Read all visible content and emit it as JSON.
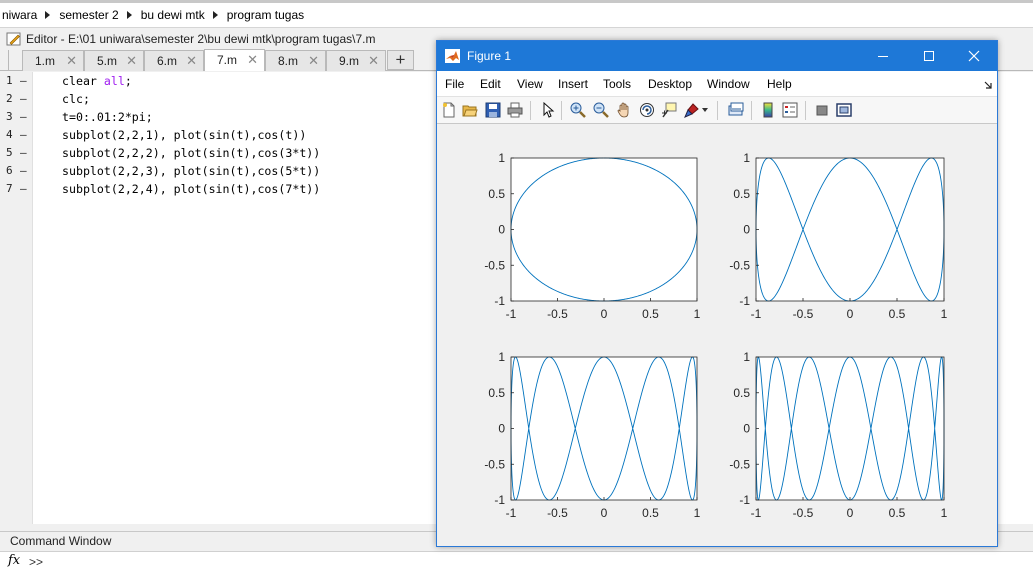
{
  "breadcrumb": [
    "niwara",
    "semester 2",
    "bu dewi mtk",
    "program tugas"
  ],
  "editor": {
    "title": "Editor - E:\\01 uniwara\\semester 2\\bu dewi mtk\\program tugas\\7.m",
    "tabs": [
      {
        "label": "1.m",
        "active": false
      },
      {
        "label": "5.m",
        "active": false
      },
      {
        "label": "6.m",
        "active": false
      },
      {
        "label": "7.m",
        "active": true
      },
      {
        "label": "8.m",
        "active": false
      },
      {
        "label": "9.m",
        "active": false
      }
    ],
    "add_tab_label": "+",
    "close_glyph": "✕",
    "lines": [
      {
        "num": "1",
        "code": "clear all;"
      },
      {
        "num": "2",
        "code": "clc;"
      },
      {
        "num": "3",
        "code": "t=0:.01:2*pi;"
      },
      {
        "num": "4",
        "code": "subplot(2,2,1), plot(sin(t),cos(t))"
      },
      {
        "num": "5",
        "code": "subplot(2,2,2), plot(sin(t),cos(3*t))"
      },
      {
        "num": "6",
        "code": "subplot(2,2,3), plot(sin(t),cos(5*t))"
      },
      {
        "num": "7",
        "code": "subplot(2,2,4), plot(sin(t),cos(7*t))"
      }
    ],
    "line_marker": "–",
    "keyword_color": "#a020f0"
  },
  "command_window": {
    "title": "Command Window",
    "fx_label": "fx",
    "prompt": ">>"
  },
  "figure": {
    "title": "Figure 1",
    "title_bar_color": "#1e78d7",
    "window_buttons": [
      "minimize",
      "maximize",
      "close"
    ],
    "menu": [
      "File",
      "Edit",
      "View",
      "Insert",
      "Tools",
      "Desktop",
      "Window",
      "Help"
    ],
    "toolbar_icons": [
      "new-figure-icon",
      "open-file-icon",
      "save-icon",
      "print-icon",
      "pointer-icon",
      "zoom-in-icon",
      "zoom-out-icon",
      "pan-icon",
      "rotate-icon",
      "data-cursor-icon",
      "brush-icon",
      "link-plot-icon",
      "colorbar-icon",
      "legend-icon",
      "hide-plot-tools-icon",
      "show-plot-tools-icon"
    ],
    "line_color": "#0072bd"
  },
  "chart_data": [
    {
      "type": "line",
      "series": [
        {
          "x_expr": "sin(t)",
          "y_expr": "cos(t)",
          "freq": 1
        }
      ],
      "xlim": [
        -1,
        1
      ],
      "ylim": [
        -1,
        1
      ],
      "xticks": [
        "-1",
        "-0.5",
        "0",
        "0.5",
        "1"
      ],
      "yticks": [
        "1",
        "0.5",
        "0",
        "-0.5",
        "-1"
      ],
      "grid": false
    },
    {
      "type": "line",
      "series": [
        {
          "x_expr": "sin(t)",
          "y_expr": "cos(3*t)",
          "freq": 3
        }
      ],
      "xlim": [
        -1,
        1
      ],
      "ylim": [
        -1,
        1
      ],
      "xticks": [
        "-1",
        "-0.5",
        "0",
        "0.5",
        "1"
      ],
      "yticks": [
        "1",
        "0.5",
        "0",
        "-0.5",
        "-1"
      ],
      "grid": false
    },
    {
      "type": "line",
      "series": [
        {
          "x_expr": "sin(t)",
          "y_expr": "cos(5*t)",
          "freq": 5
        }
      ],
      "xlim": [
        -1,
        1
      ],
      "ylim": [
        -1,
        1
      ],
      "xticks": [
        "-1",
        "-0.5",
        "0",
        "0.5",
        "1"
      ],
      "yticks": [
        "1",
        "0.5",
        "0",
        "-0.5",
        "-1"
      ],
      "grid": false
    },
    {
      "type": "line",
      "series": [
        {
          "x_expr": "sin(t)",
          "y_expr": "cos(7*t)",
          "freq": 7
        }
      ],
      "xlim": [
        -1,
        1
      ],
      "ylim": [
        -1,
        1
      ],
      "xticks": [
        "-1",
        "-0.5",
        "0",
        "0.5",
        "1"
      ],
      "yticks": [
        "1",
        "0.5",
        "0",
        "-0.5",
        "-1"
      ],
      "grid": false
    }
  ]
}
